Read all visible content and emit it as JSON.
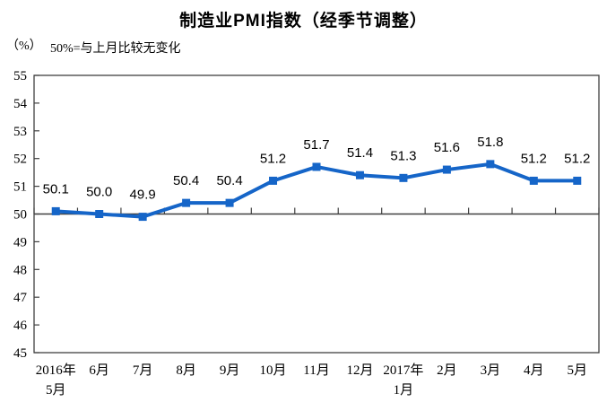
{
  "header": {
    "title": "制造业PMI指数（经季节调整）",
    "unit_label": "（%）",
    "note": "50%=与上月比较无变化"
  },
  "chart_data": {
    "type": "line",
    "title": "制造业PMI指数（经季节调整）",
    "subtitle_note": "50%=与上月比较无变化",
    "unit": "（%）",
    "categories": [
      "2016年\n5月",
      "6月",
      "7月",
      "8月",
      "9月",
      "10月",
      "11月",
      "12月",
      "2017年\n1月",
      "2月",
      "3月",
      "4月",
      "5月"
    ],
    "values": [
      50.1,
      50.0,
      49.9,
      50.4,
      50.4,
      51.2,
      51.7,
      51.4,
      51.3,
      51.6,
      51.8,
      51.2,
      51.2
    ],
    "series_name": "制造业PMI指数",
    "ylim": [
      45,
      55
    ],
    "ytick_step": 1,
    "yticks": [
      45,
      46,
      47,
      48,
      49,
      50,
      51,
      52,
      53,
      54,
      55
    ],
    "baseline_value": 50,
    "grid": false,
    "legend_position": "none",
    "label_decimals": 1,
    "colors": {
      "line": "#1565C8",
      "marker": "#1565C8",
      "axis": "#404040",
      "text": "#000000"
    }
  }
}
